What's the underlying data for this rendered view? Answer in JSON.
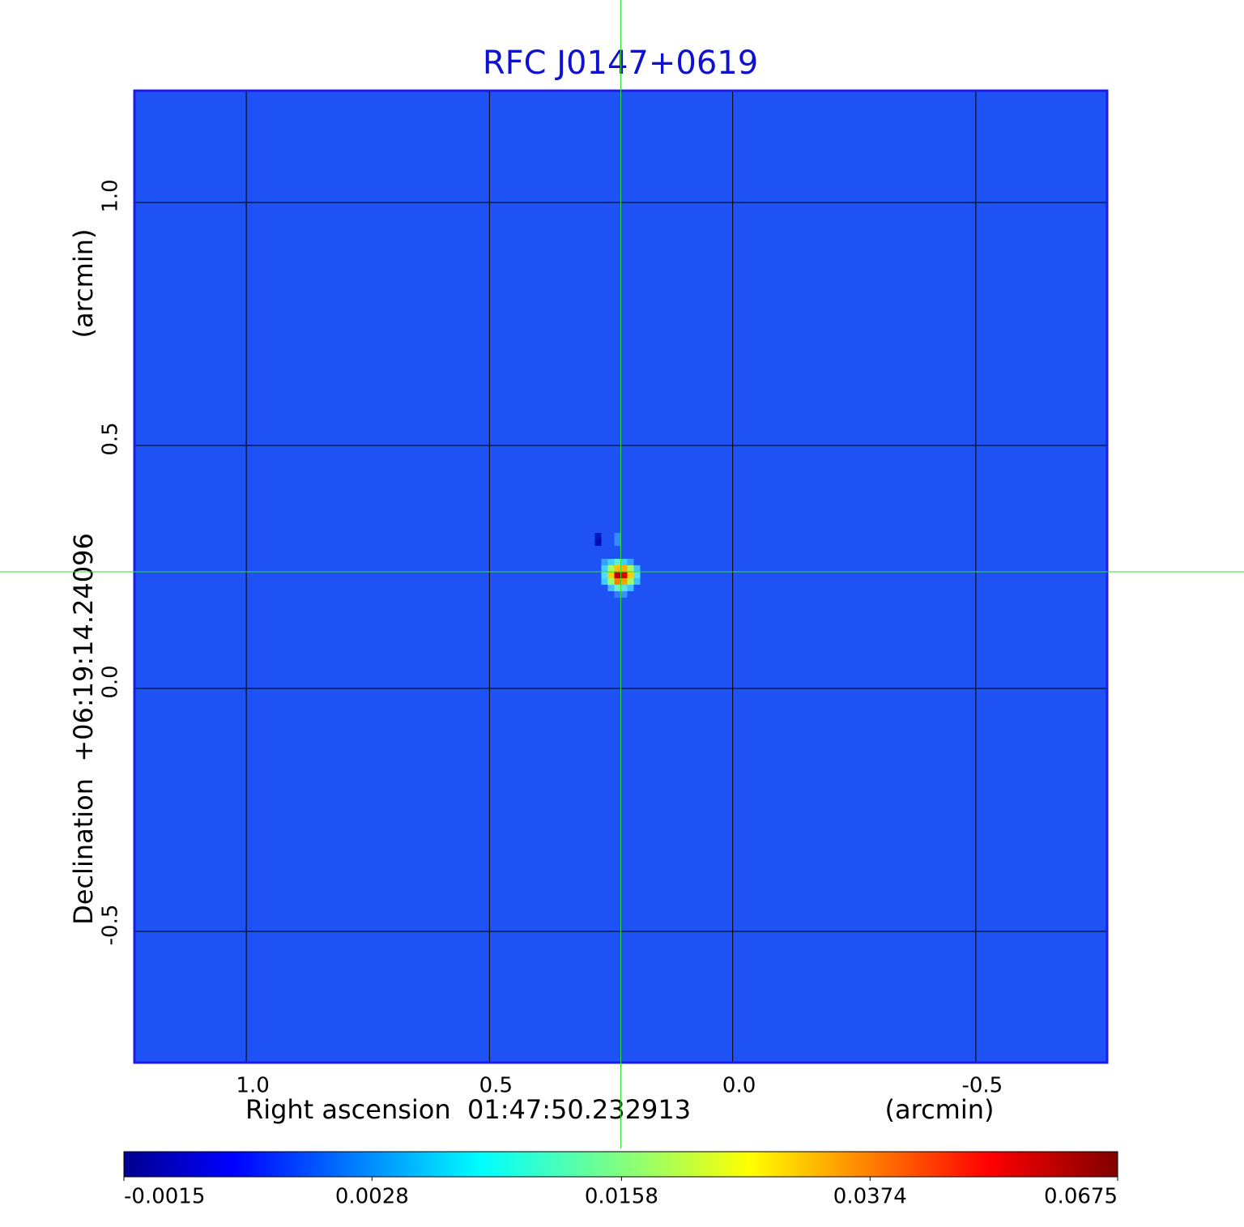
{
  "chart_data": {
    "type": "image",
    "title": "RFC J0147+0619",
    "x_label": "Right ascension  01:47:50.232913",
    "x_unit": "(arcmin)",
    "y_label": "Declination  +06:19:14.24096",
    "y_unit": "(arcmin)",
    "xlim": [
      1.23,
      -0.77
    ],
    "ylim": [
      -0.77,
      1.23
    ],
    "xticks": [
      {
        "value": 1,
        "label": "1.0"
      },
      0.5,
      {
        "value": 0,
        "label": "0.0"
      },
      -0.5
    ],
    "yticks": [
      {
        "value": 1,
        "label": "1.0"
      },
      0.5,
      {
        "value": 0,
        "label": "0.0"
      },
      -0.5
    ],
    "grid": true,
    "crosshair": {
      "x": 0.23,
      "y": 0.24
    },
    "colorbar": {
      "cmap": "jet",
      "scale": "sqrt",
      "ticks": [
        -0.0015,
        0.0028,
        0.0158,
        0.0374,
        0.0675
      ]
    }
  }
}
